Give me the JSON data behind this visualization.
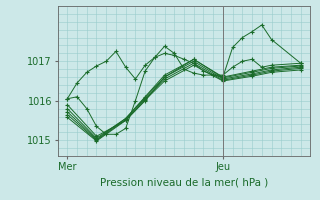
{
  "title": "",
  "xlabel": "Pression niveau de la mer( hPa )",
  "bg_color": "#cce8e8",
  "grid_color": "#99cccc",
  "line_color": "#1a6b2a",
  "xtick_labels": [
    "Mer",
    "Jeu"
  ],
  "xtick_pos": [
    0,
    16
  ],
  "ylim": [
    1014.6,
    1018.4
  ],
  "yticks": [
    1015,
    1016,
    1017
  ],
  "xlim": [
    -1,
    25
  ],
  "vline_x": 16,
  "lines": [
    [
      0,
      1016.05,
      1,
      1016.1,
      2,
      1015.8,
      3,
      1015.35,
      4,
      1015.15,
      5,
      1015.15,
      6,
      1015.3,
      7,
      1016.0,
      8,
      1016.75,
      9,
      1017.1,
      10,
      1017.38,
      11,
      1017.2,
      12,
      1016.8,
      13,
      1016.7,
      14,
      1016.65,
      15,
      1016.65,
      16,
      1016.65,
      17,
      1016.85,
      18,
      1017.0,
      19,
      1017.05,
      20,
      1016.85,
      21,
      1016.9,
      24,
      1016.95
    ],
    [
      0,
      1015.9,
      3,
      1015.1,
      6,
      1015.5,
      8,
      1016.0,
      10,
      1016.6,
      13,
      1017.05,
      16,
      1016.6,
      19,
      1016.75,
      21,
      1016.85,
      24,
      1016.9
    ],
    [
      0,
      1015.8,
      3,
      1015.05,
      6,
      1015.55,
      8,
      1016.1,
      10,
      1016.65,
      13,
      1017.05,
      16,
      1016.58,
      19,
      1016.72,
      21,
      1016.82,
      24,
      1016.88
    ],
    [
      0,
      1015.72,
      3,
      1015.02,
      6,
      1015.55,
      8,
      1016.08,
      10,
      1016.6,
      13,
      1017.0,
      16,
      1016.55,
      19,
      1016.68,
      21,
      1016.78,
      24,
      1016.85
    ],
    [
      0,
      1015.65,
      3,
      1015.0,
      6,
      1015.52,
      8,
      1016.05,
      10,
      1016.55,
      13,
      1016.95,
      16,
      1016.52,
      19,
      1016.65,
      21,
      1016.75,
      24,
      1016.82
    ],
    [
      0,
      1015.58,
      3,
      1014.98,
      6,
      1015.5,
      8,
      1016.02,
      10,
      1016.5,
      13,
      1016.9,
      16,
      1016.5,
      19,
      1016.62,
      21,
      1016.72,
      24,
      1016.78
    ],
    [
      0,
      1016.05,
      1,
      1016.45,
      2,
      1016.72,
      3,
      1016.88,
      4,
      1017.0,
      5,
      1017.25,
      6,
      1016.85,
      7,
      1016.55,
      8,
      1016.9,
      9,
      1017.1,
      10,
      1017.2,
      11,
      1017.15,
      12,
      1017.05,
      13,
      1016.95,
      14,
      1016.75,
      15,
      1016.65,
      16,
      1016.6,
      17,
      1017.35,
      18,
      1017.6,
      19,
      1017.75,
      20,
      1017.92,
      21,
      1017.55,
      24,
      1016.95
    ]
  ]
}
